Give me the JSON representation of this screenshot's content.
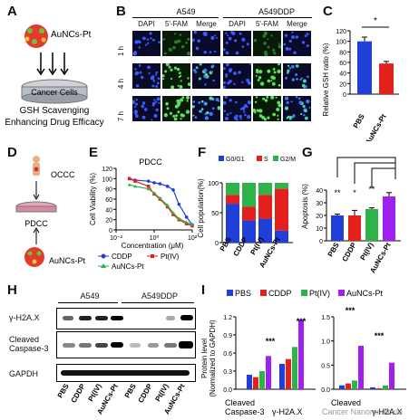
{
  "panels": {
    "A": {
      "label": "A",
      "particle": "AuNCs-Pt",
      "dish": "Cancer Cells",
      "caption1": "GSH Scavenging",
      "caption2": "Enhancing Drug Efficacy"
    },
    "B": {
      "label": "B",
      "group1": "A549",
      "group2": "A549DDP",
      "cols": [
        "DAPI",
        "5'-FAM",
        "Merge",
        "DAPI",
        "5'-FAM",
        "Merge"
      ],
      "rows": [
        "1 h",
        "4 h",
        "7 h"
      ]
    },
    "C": {
      "label": "C",
      "ylabel": "Relative GSH ratio (%)",
      "yticks": [
        "0",
        "20",
        "40",
        "60",
        "80",
        "100",
        "120"
      ],
      "star": "*"
    },
    "D": {
      "label": "D",
      "occc": "OCCC",
      "pdcc": "PDCC",
      "particle": "AuNCs-Pt"
    },
    "E": {
      "label": "E",
      "title": "PDCC",
      "ylabel": "Cell Viability (%)",
      "xlabel": "Concentration (μM)",
      "yticks": [
        "0",
        "20",
        "40",
        "60",
        "80",
        "100",
        "120"
      ],
      "xticks": [
        "10⁻²",
        "10⁰",
        "10²"
      ],
      "legend": [
        "CDDP",
        "Pt(IV)",
        "AuNCs-Pt"
      ]
    },
    "F": {
      "label": "F",
      "ylabel": "Cell population(%)",
      "yticks": [
        "0",
        "50",
        "100"
      ],
      "legend": [
        "G0/G1",
        "S",
        "G2/M"
      ]
    },
    "G": {
      "label": "G",
      "ylabel": "Apoptosis (%)",
      "yticks": [
        "0",
        "10",
        "20",
        "30",
        "40"
      ],
      "stars": [
        "**",
        "*",
        "**"
      ]
    },
    "H": {
      "label": "H",
      "group1": "A549",
      "group2": "A549DDP",
      "rows": [
        "γ-H2A.X",
        "Cleaved",
        "Caspase-3",
        "GAPDH"
      ],
      "lanes": [
        "PBS",
        "CDDP",
        "Pt(IV)",
        "AuNCs-Pt",
        "PBS",
        "CDDP",
        "Pt(IV)",
        "AuNCs-Pt"
      ]
    },
    "I": {
      "label": "I",
      "ylabel1": "Protein level",
      "ylabel2": "(Normalized to GAPDH)",
      "legend": [
        "PBS",
        "CDDP",
        "Pt(IV)",
        "AuNCs-Pt"
      ],
      "yticks1": [
        "0.0",
        "0.3",
        "0.6",
        "0.9",
        "1.2"
      ],
      "yticks2": [
        "0.0",
        "0.5",
        "1.0",
        "1.5"
      ],
      "groups": [
        "Cleaved",
        "Caspase-3",
        "γ-H2A.X",
        "Cleaved",
        "γ-H2A.X"
      ],
      "stars": "***",
      "watermark": "Cancer Nanomedicine"
    },
    "bar_labels": [
      "PBS",
      "AuNCs-Pt"
    ],
    "group_labels": [
      "PBS",
      "CDDP",
      "Pt(IV)",
      "AuNCs-Pt"
    ]
  },
  "colors": {
    "blue": "#1f3fd6",
    "red": "#e3201c",
    "green": "#2db34a",
    "purple": "#a020f0",
    "dark": "#111111"
  },
  "chart_data": [
    {
      "type": "bar",
      "panel": "C",
      "categories": [
        "PBS",
        "AuNCs-Pt"
      ],
      "values": [
        100,
        58
      ],
      "errors": [
        8,
        4
      ],
      "ylabel": "Relative GSH ratio (%)",
      "ylim": [
        0,
        120
      ]
    },
    {
      "type": "line",
      "panel": "E",
      "title": "PDCC",
      "xlabel": "Concentration (μM)",
      "ylabel": "Cell Viability (%)",
      "ylim": [
        0,
        120
      ],
      "xscale": "log",
      "x": [
        0.05,
        0.1,
        0.5,
        1,
        2,
        5,
        10,
        20,
        50,
        100
      ],
      "series": [
        {
          "name": "CDDP",
          "values": [
            100,
            97,
            95,
            92,
            90,
            85,
            78,
            50,
            25,
            10
          ]
        },
        {
          "name": "Pt(IV)",
          "values": [
            100,
            95,
            85,
            70,
            60,
            45,
            30,
            20,
            12,
            8
          ]
        },
        {
          "name": "AuNCs-Pt",
          "values": [
            88,
            85,
            80,
            72,
            62,
            48,
            33,
            22,
            15,
            10
          ]
        }
      ]
    },
    {
      "type": "bar",
      "panel": "F",
      "stacked": true,
      "categories": [
        "PBS",
        "CDDP",
        "Pt(IV)",
        "AuNCs-Pt"
      ],
      "series": [
        {
          "name": "G0/G1",
          "values": [
            65,
            37,
            40,
            20
          ]
        },
        {
          "name": "S",
          "values": [
            15,
            23,
            40,
            70
          ]
        },
        {
          "name": "G2/M",
          "values": [
            20,
            40,
            20,
            10
          ]
        }
      ],
      "ylabel": "Cell population(%)",
      "ylim": [
        0,
        100
      ]
    },
    {
      "type": "bar",
      "panel": "G",
      "categories": [
        "PBS",
        "CDDP",
        "Pt(IV)",
        "AuNCs-Pt"
      ],
      "values": [
        20,
        20,
        25,
        35
      ],
      "errors": [
        1,
        4,
        1,
        3
      ],
      "ylabel": "Apoptosis (%)",
      "ylim": [
        0,
        40
      ]
    },
    {
      "type": "bar",
      "panel": "I-left",
      "categories": [
        "Cleaved Caspase-3",
        "γ-H2A.X"
      ],
      "series": [
        {
          "name": "PBS",
          "values": [
            0.24,
            0.42
          ]
        },
        {
          "name": "CDDP",
          "values": [
            0.2,
            0.5
          ]
        },
        {
          "name": "Pt(IV)",
          "values": [
            0.3,
            0.7
          ]
        },
        {
          "name": "AuNCs-Pt",
          "values": [
            0.55,
            1.15
          ]
        }
      ],
      "ylabel": "Protein level (Normalized to GAPDH)",
      "ylim": [
        0,
        1.2
      ]
    },
    {
      "type": "bar",
      "panel": "I-right",
      "categories": [
        "Cleaved Caspase-3",
        "γ-H2A.X"
      ],
      "series": [
        {
          "name": "PBS",
          "values": [
            0.08,
            0.04
          ]
        },
        {
          "name": "CDDP",
          "values": [
            0.12,
            0.02
          ]
        },
        {
          "name": "Pt(IV)",
          "values": [
            0.18,
            0.08
          ]
        },
        {
          "name": "AuNCs-Pt",
          "values": [
            0.9,
            0.55
          ]
        }
      ],
      "ylim": [
        0,
        1.5
      ]
    }
  ]
}
